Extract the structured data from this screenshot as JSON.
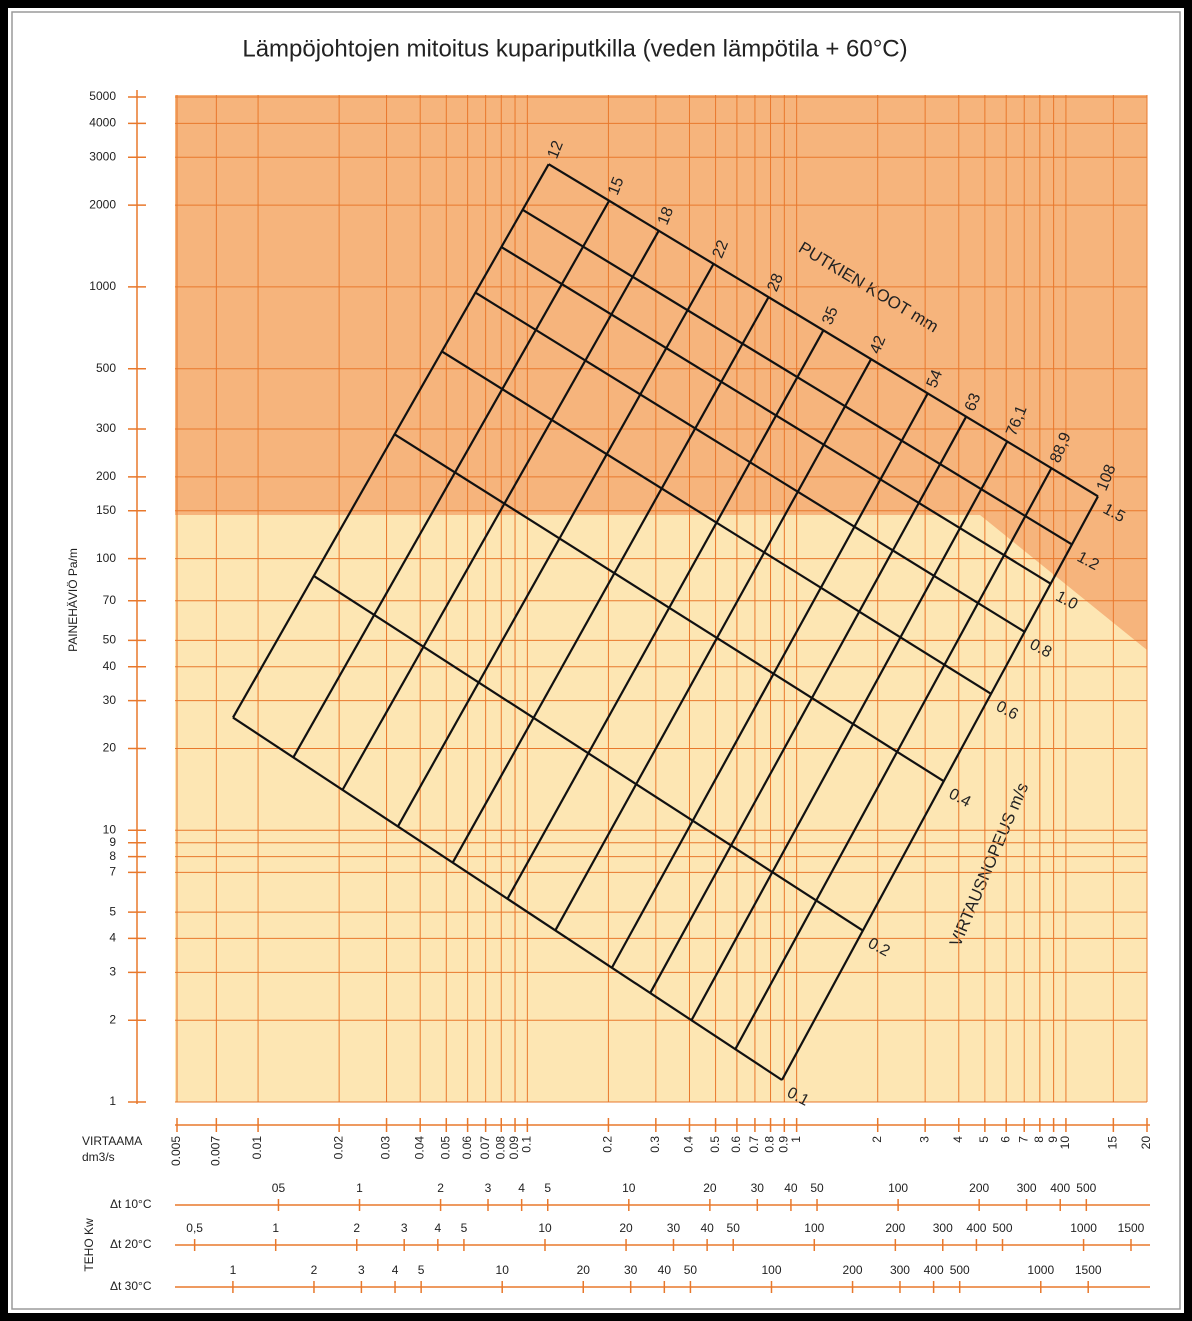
{
  "chart_data": {
    "type": "nomogram",
    "title": "Lämpöjohtojen mitoitus kupariputkilla (veden lämpötila + 60°C)",
    "ylabel": "PAINEHÄVIÖ Pa/m",
    "ylog": true,
    "ylim": [
      1,
      5000
    ],
    "yticks": [
      1,
      2,
      3,
      4,
      5,
      7,
      8,
      9,
      10,
      20,
      30,
      40,
      50,
      70,
      100,
      150,
      200,
      300,
      500,
      1000,
      2000,
      3000,
      4000,
      5000
    ],
    "xlabel": "VIRTAAMA",
    "xunit": "dm3/s",
    "xlog": true,
    "xlim": [
      0.005,
      20
    ],
    "xticks": [
      0.005,
      0.007,
      0.01,
      0.02,
      0.03,
      0.04,
      0.05,
      0.06,
      0.07,
      0.08,
      0.09,
      0.1,
      0.2,
      0.3,
      0.4,
      0.5,
      0.6,
      0.7,
      0.8,
      0.9,
      1,
      2,
      3,
      4,
      5,
      6,
      7,
      8,
      9,
      10,
      15,
      20
    ],
    "grid": true,
    "grid_color": "#e8782c",
    "line_color": "#111111",
    "power": {
      "label": "TEHO Kw",
      "scales": [
        {
          "name": "Δt 10°C",
          "xlim": [
            0.21,
            840
          ],
          "ticks": [
            {
              "value": 0.5,
              "label": "05"
            },
            1,
            2,
            3,
            4,
            5,
            10,
            20,
            30,
            40,
            50,
            100,
            200,
            300,
            400,
            500
          ]
        },
        {
          "name": "Δt 20°C",
          "xlim": [
            0.43,
            1720
          ],
          "ticks": [
            {
              "value": 0.5,
              "label": "0,5"
            },
            1,
            2,
            3,
            4,
            5,
            10,
            20,
            30,
            40,
            50,
            100,
            200,
            300,
            400,
            500,
            1000,
            1500
          ]
        },
        {
          "name": "Δt 30°C",
          "xlim": [
            0.62,
            2480
          ],
          "ticks": [
            1,
            2,
            3,
            4,
            5,
            10,
            20,
            30,
            40,
            50,
            100,
            200,
            300,
            400,
            500,
            1000,
            1500
          ]
        }
      ]
    },
    "pipes": {
      "label": "PUTKIEN KOOT mm",
      "sizes": [
        "12",
        "15",
        "18",
        "22",
        "28",
        "35",
        "42",
        "54",
        "63",
        "76,1",
        "88,9",
        "108"
      ],
      "x_min_velocity": [
        0.00807,
        0.0135,
        0.0206,
        0.033,
        0.0528,
        0.0844,
        0.127,
        0.206,
        0.286,
        0.407,
        0.592,
        0.882
      ],
      "y_min_velocity": [
        26.0,
        18.5,
        14.1,
        10.3,
        7.6,
        5.6,
        4.28,
        3.12,
        2.52,
        2.0,
        1.565,
        1.205
      ],
      "x_max_velocity": [
        0.12,
        0.2015,
        0.308,
        0.492,
        0.787,
        1.258,
        1.89,
        3.07,
        4.26,
        6.06,
        8.83,
        13.15
      ],
      "y_max_velocity": [
        2830,
        2080,
        1614,
        1218,
        918,
        693,
        542,
        406,
        333,
        270,
        215,
        169.5
      ]
    },
    "velocities": {
      "label": "VIRTAUSNOPEUS m/s",
      "values": [
        0.1,
        0.2,
        0.4,
        0.6,
        0.8,
        1.0,
        1.2,
        1.5
      ],
      "value_labels": [
        "0.1",
        "0.2",
        "0.4",
        "0.6",
        "0.8",
        "1.0",
        "1.2",
        "1.5"
      ]
    }
  }
}
